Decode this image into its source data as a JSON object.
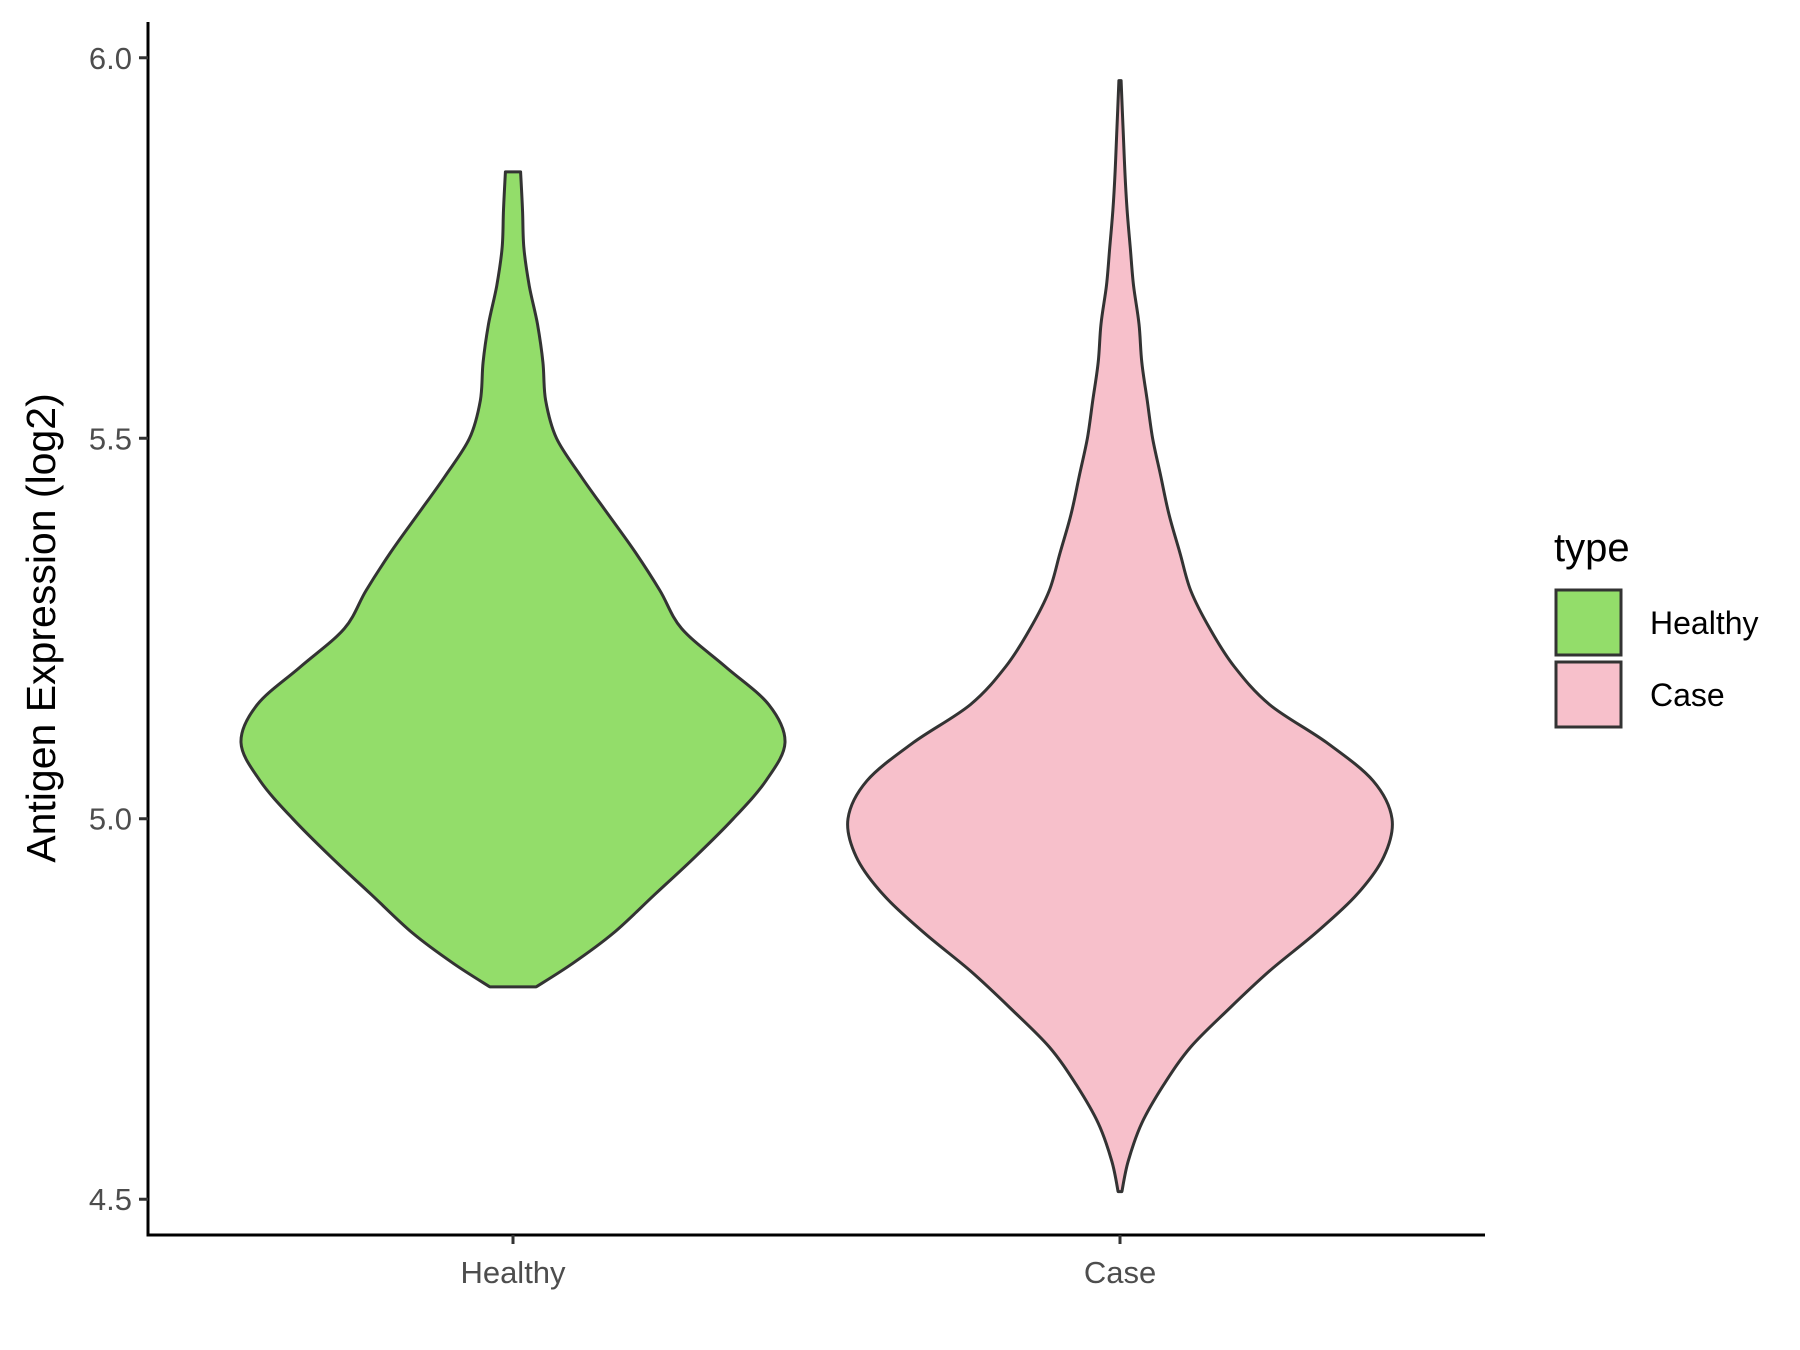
{
  "chart_data": {
    "type": "violin",
    "ylabel": "Antigen Expression (log2)",
    "xlabel": "",
    "ylim": [
      4.453,
      6.047
    ],
    "yticks": [
      4.5,
      5.0,
      5.5,
      6.0
    ],
    "ytick_labels": [
      "4.5",
      "5.0",
      "5.5",
      "6.0"
    ],
    "categories": [
      "Healthy",
      "Case"
    ],
    "legend": {
      "title": "type",
      "placement": "right",
      "entries": [
        "Healthy",
        "Case"
      ]
    },
    "colors": {
      "Healthy": "#93dd6a",
      "Case": "#f7c0cb",
      "outline": "#333333"
    },
    "series": [
      {
        "category": "Healthy",
        "density": [
          [
            4.779,
            0.085
          ],
          [
            4.81,
            0.22
          ],
          [
            4.85,
            0.37
          ],
          [
            4.9,
            0.52
          ],
          [
            4.95,
            0.67
          ],
          [
            5.0,
            0.81
          ],
          [
            5.05,
            0.93
          ],
          [
            5.1,
            1.0
          ],
          [
            5.15,
            0.94
          ],
          [
            5.2,
            0.78
          ],
          [
            5.25,
            0.62
          ],
          [
            5.3,
            0.54
          ],
          [
            5.35,
            0.45
          ],
          [
            5.4,
            0.35
          ],
          [
            5.45,
            0.25
          ],
          [
            5.5,
            0.16
          ],
          [
            5.55,
            0.12
          ],
          [
            5.6,
            0.11
          ],
          [
            5.65,
            0.09
          ],
          [
            5.7,
            0.06
          ],
          [
            5.75,
            0.04
          ],
          [
            5.8,
            0.035
          ],
          [
            5.85,
            0.028
          ]
        ]
      },
      {
        "category": "Case",
        "density": [
          [
            4.51,
            0.007
          ],
          [
            4.55,
            0.03
          ],
          [
            4.6,
            0.08
          ],
          [
            4.65,
            0.16
          ],
          [
            4.7,
            0.26
          ],
          [
            4.75,
            0.4
          ],
          [
            4.8,
            0.55
          ],
          [
            4.85,
            0.72
          ],
          [
            4.9,
            0.87
          ],
          [
            4.95,
            0.97
          ],
          [
            5.0,
            1.0
          ],
          [
            5.05,
            0.93
          ],
          [
            5.1,
            0.76
          ],
          [
            5.15,
            0.55
          ],
          [
            5.2,
            0.42
          ],
          [
            5.25,
            0.33
          ],
          [
            5.3,
            0.26
          ],
          [
            5.35,
            0.22
          ],
          [
            5.4,
            0.18
          ],
          [
            5.45,
            0.15
          ],
          [
            5.5,
            0.12
          ],
          [
            5.55,
            0.1
          ],
          [
            5.6,
            0.08
          ],
          [
            5.65,
            0.07
          ],
          [
            5.7,
            0.05
          ],
          [
            5.75,
            0.038
          ],
          [
            5.8,
            0.026
          ],
          [
            5.85,
            0.018
          ],
          [
            5.9,
            0.012
          ],
          [
            5.97,
            0.004
          ]
        ]
      }
    ]
  }
}
